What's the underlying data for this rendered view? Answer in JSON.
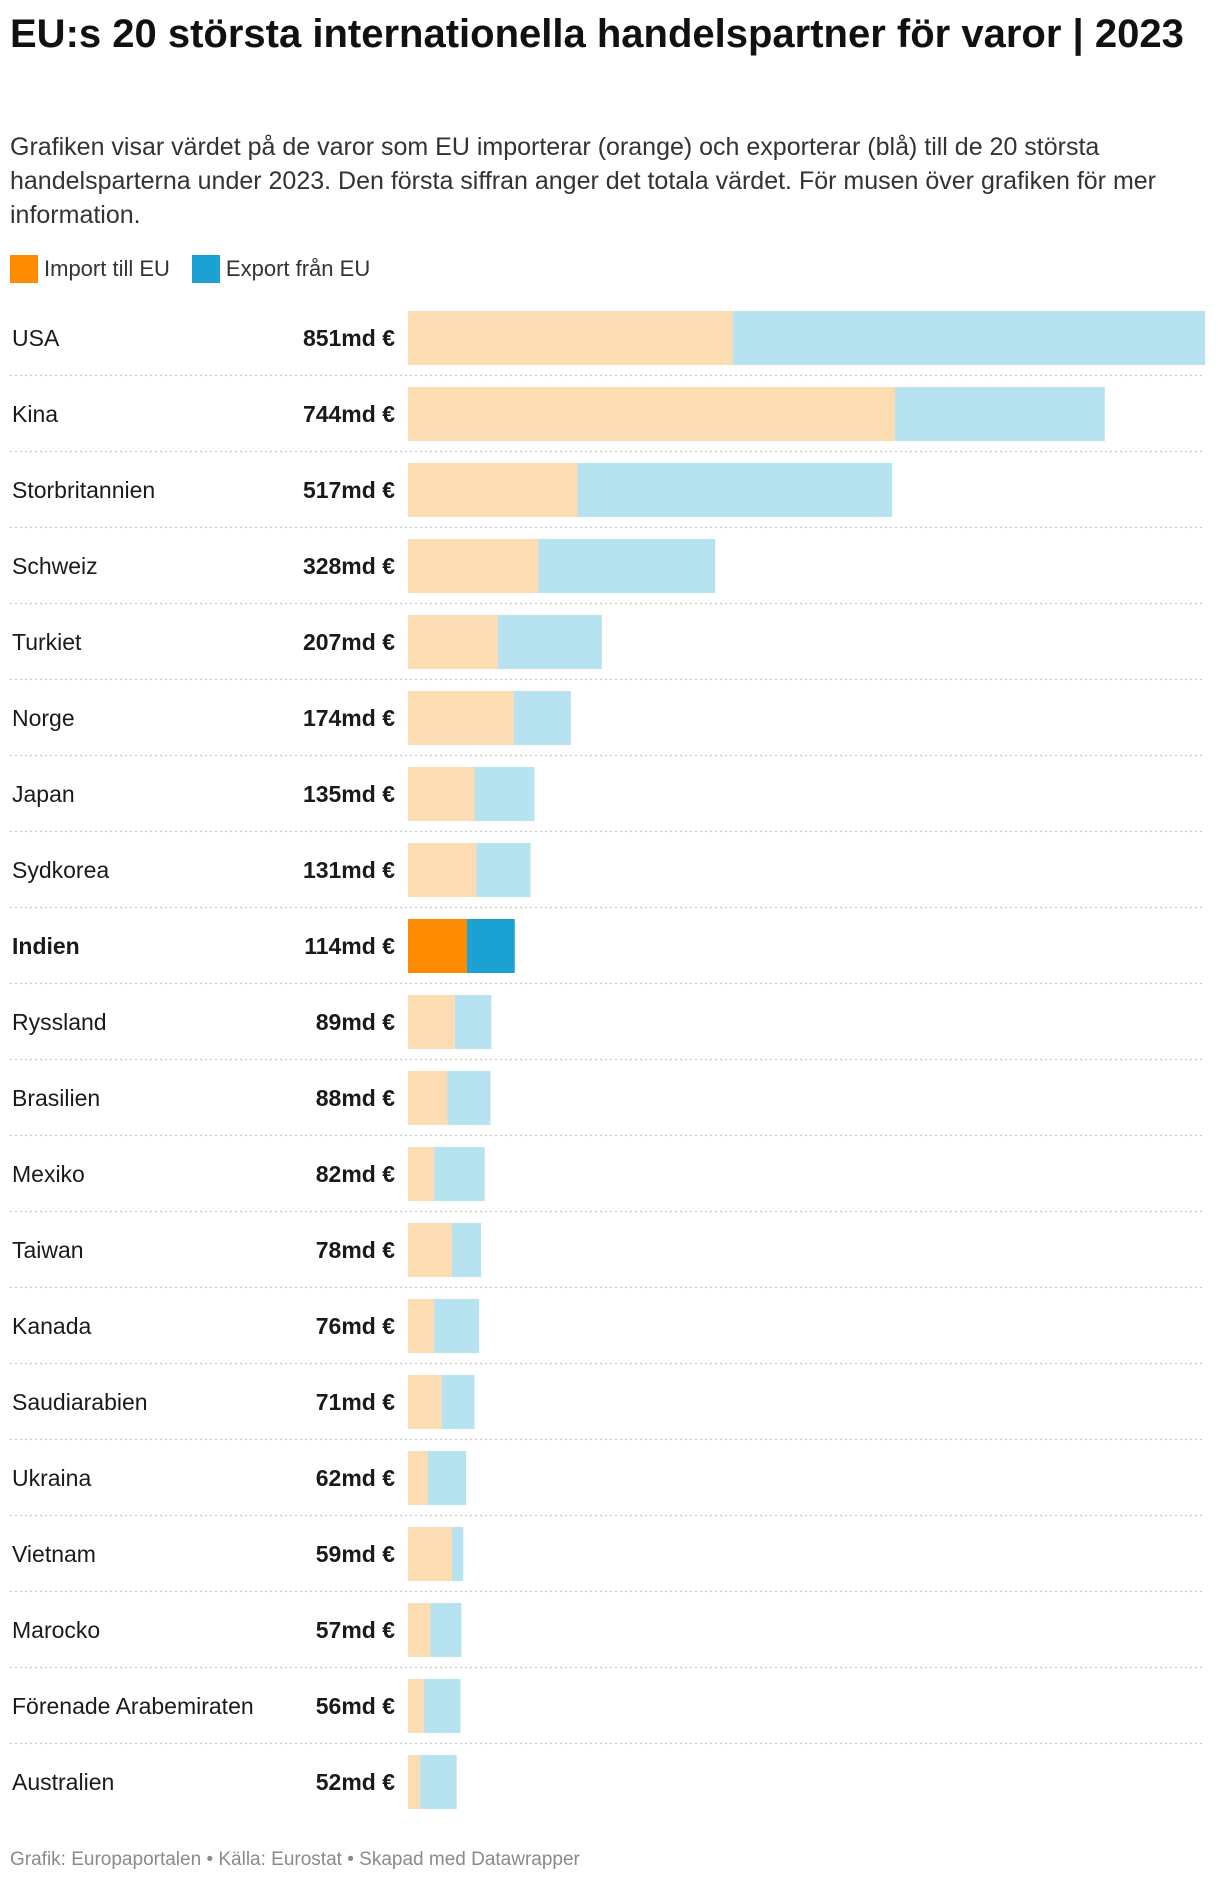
{
  "header": {
    "title": "EU:s 20 största internationella handelspartner för varor | 2023",
    "subtitle": "Grafiken visar värdet på de varor som EU importerar (orange) och exporterar (blå) till de 20 största handelsparterna under 2023. Den första siffran anger det totala värdet. För musen över grafiken för mer information."
  },
  "legend": {
    "import_label": "Import till EU",
    "export_label": "Export från EU"
  },
  "footer": {
    "credit": "Grafik: Europaportalen • Källa: Eurostat • Skapad med Datawrapper"
  },
  "colors": {
    "import": "#ff8c00",
    "export": "#1ba2d3",
    "import_faded": "#fcdcb2",
    "export_faded": "#b7e2f0",
    "separator": "#c8c8c8"
  },
  "chart_data": {
    "type": "bar",
    "orientation": "horizontal",
    "stacked": true,
    "unit": "md €",
    "highlighted": "Indien",
    "categories": [
      "USA",
      "Kina",
      "Storbritannien",
      "Schweiz",
      "Turkiet",
      "Norge",
      "Japan",
      "Sydkorea",
      "Indien",
      "Ryssland",
      "Brasilien",
      "Mexiko",
      "Taiwan",
      "Kanada",
      "Saudiarabien",
      "Ukraina",
      "Vietnam",
      "Marocko",
      "Förenade Arabemiraten",
      "Australien"
    ],
    "total_labels": [
      "851md €",
      "744md €",
      "517md €",
      "328md €",
      "207md €",
      "174md €",
      "135md €",
      "131md €",
      "114md €",
      "89md €",
      "88md €",
      "82md €",
      "78md €",
      "76md €",
      "71md €",
      "62md €",
      "59md €",
      "57md €",
      "56md €",
      "52md €"
    ],
    "totals": [
      851,
      744,
      517,
      328,
      207,
      174,
      135,
      131,
      114,
      89,
      88,
      82,
      78,
      76,
      71,
      62,
      59,
      57,
      56,
      52
    ],
    "series": [
      {
        "name": "Import till EU",
        "values": [
          347,
          520,
          181,
          139,
          96,
          113,
          71,
          73,
          63,
          50,
          42,
          28,
          47,
          28,
          36,
          21,
          47,
          24,
          17,
          13
        ]
      },
      {
        "name": "Export från EU",
        "values": [
          504,
          224,
          336,
          189,
          111,
          61,
          64,
          58,
          51,
          39,
          46,
          54,
          31,
          48,
          35,
          41,
          12,
          33,
          39,
          39
        ]
      }
    ],
    "xlim": [
      0,
      851
    ]
  }
}
